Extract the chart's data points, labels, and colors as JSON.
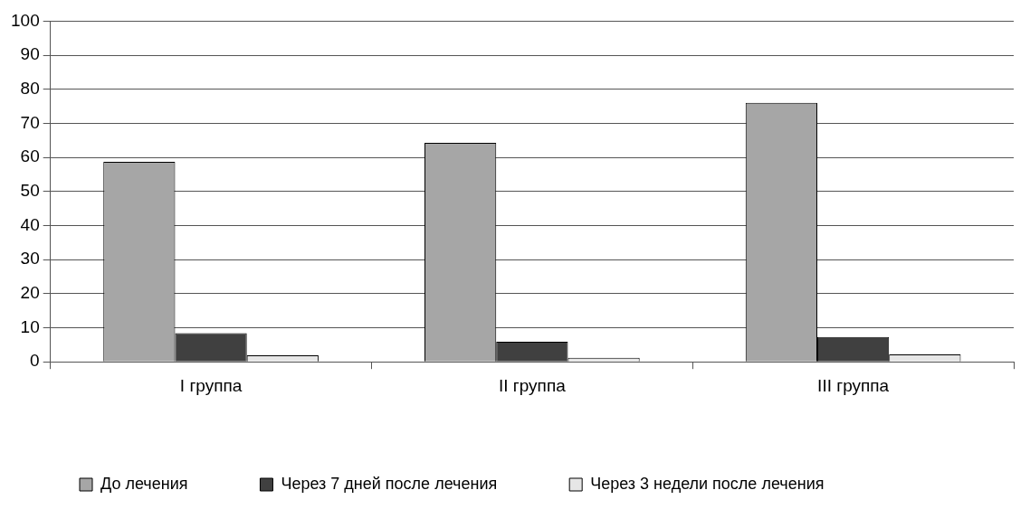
{
  "chart_data": {
    "type": "bar",
    "categories": [
      "I группа",
      "II группа",
      "III группа"
    ],
    "series": [
      {
        "name": "До лечения",
        "color": "#a6a6a6",
        "values": [
          58.7,
          64.3,
          76.0
        ]
      },
      {
        "name": "Через 7 дней после лечения",
        "color": "#404040",
        "values": [
          8.4,
          5.9,
          7.3
        ]
      },
      {
        "name": "Через 3 недели после лечения",
        "color": "#e6e6e6",
        "values": [
          1.9,
          1.2,
          2.2
        ]
      }
    ],
    "ylim": [
      0,
      100
    ],
    "yticks": [
      0,
      10,
      20,
      30,
      40,
      50,
      60,
      70,
      80,
      90,
      100
    ],
    "grid": "y",
    "legend": "bottom"
  }
}
